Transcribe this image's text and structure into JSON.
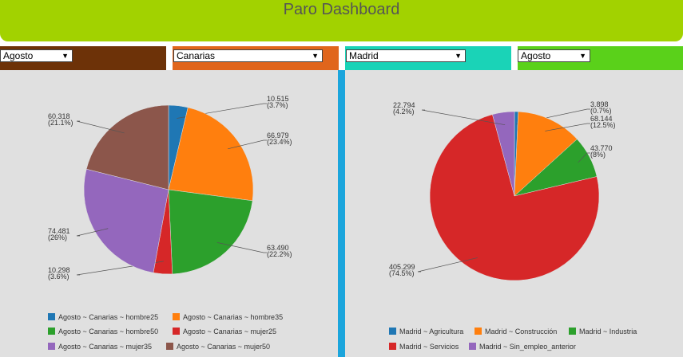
{
  "header": {
    "title": "Paro Dashboard"
  },
  "filters": {
    "month_left": "Agosto",
    "region": "Canarias",
    "province": "Madrid",
    "month_right": "Agosto"
  },
  "colors": {
    "header": "#a2d200",
    "bar1": "#6d3208",
    "bar2": "#e0651c",
    "bar3": "#1ad3b7",
    "bar4": "#5ad11a",
    "divider": "#1ba5dc"
  },
  "chart_data": [
    {
      "type": "pie",
      "slices": [
        {
          "name": "Agosto ~ Canarias ~ hombre25",
          "value": 10515,
          "value_label": "10.515",
          "pct_label": "(3.7%)",
          "color": "#1f77b4"
        },
        {
          "name": "Agosto ~ Canarias ~ hombre35",
          "value": 66979,
          "value_label": "66.979",
          "pct_label": "(23.4%)",
          "color": "#ff7f0e"
        },
        {
          "name": "Agosto ~ Canarias ~ hombre50",
          "value": 63490,
          "value_label": "63.490",
          "pct_label": "(22.2%)",
          "color": "#2ca02c"
        },
        {
          "name": "Agosto ~ Canarias ~ mujer25",
          "value": 10298,
          "value_label": "10.298",
          "pct_label": "(3.6%)",
          "color": "#d62728"
        },
        {
          "name": "Agosto ~ Canarias ~ mujer35",
          "value": 74481,
          "value_label": "74.481",
          "pct_label": "(26%)",
          "color": "#9467bd"
        },
        {
          "name": "Agosto ~ Canarias ~ mujer50",
          "value": 60318,
          "value_label": "60.318",
          "pct_label": "(21.1%)",
          "color": "#8c564b"
        }
      ]
    },
    {
      "type": "pie",
      "slices": [
        {
          "name": "Madrid ~ Agricultura",
          "value": 3898,
          "value_label": "3.898",
          "pct_label": "(0.7%)",
          "color": "#1f77b4"
        },
        {
          "name": "Madrid ~ Construcción",
          "value": 68144,
          "value_label": "68.144",
          "pct_label": "(12.5%)",
          "color": "#ff7f0e"
        },
        {
          "name": "Madrid ~ Industria",
          "value": 43770,
          "value_label": "43.770",
          "pct_label": "(8%)",
          "color": "#2ca02c"
        },
        {
          "name": "Madrid ~ Servicios",
          "value": 405299,
          "value_label": "405.299",
          "pct_label": "(74.5%)",
          "color": "#d62728"
        },
        {
          "name": "Madrid ~ Sin_empleo_anterior",
          "value": 22794,
          "value_label": "22.794",
          "pct_label": "(4.2%)",
          "color": "#9467bd"
        }
      ]
    }
  ]
}
